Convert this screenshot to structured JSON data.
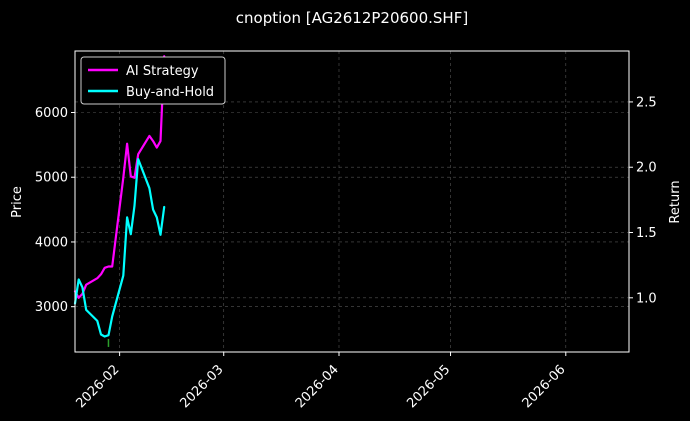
{
  "chart_data": {
    "type": "line",
    "title": "cnoption [AG2612P20600.SHF]",
    "ylabel_left": "Price",
    "ylabel_right": "Return",
    "x_range": [
      "2026-01-20",
      "2026-06-18"
    ],
    "x_ticks": [
      "2026-02",
      "2026-03",
      "2026-04",
      "2026-05",
      "2026-06"
    ],
    "y_left_range": [
      2300,
      6950
    ],
    "y_left_ticks": [
      3000,
      4000,
      5000,
      6000
    ],
    "y_right_range": [
      0.585,
      2.89
    ],
    "y_right_ticks": [
      1.0,
      1.5,
      2.0,
      2.5
    ],
    "grid": true,
    "legend_position": "top-left",
    "colors": {
      "background": "#000000",
      "axes": "#ffffff",
      "grid": "#555555",
      "marker": "#2ca02c"
    },
    "series": [
      {
        "name": "AI Strategy",
        "axis": "right",
        "color": "#ff00ff",
        "x": [
          "2026-01-20",
          "2026-01-21",
          "2026-01-22",
          "2026-01-23",
          "2026-01-26",
          "2026-01-27",
          "2026-01-28",
          "2026-01-29",
          "2026-01-30",
          "2026-02-02",
          "2026-02-03",
          "2026-02-04",
          "2026-02-05",
          "2026-02-06",
          "2026-02-09",
          "2026-02-10",
          "2026-02-11",
          "2026-02-12",
          "2026-02-13"
        ],
        "values": [
          1.05,
          1.0,
          1.03,
          1.1,
          1.15,
          1.18,
          1.23,
          1.24,
          1.24,
          1.92,
          2.18,
          1.93,
          1.92,
          2.1,
          2.24,
          2.2,
          2.15,
          2.2,
          2.85
        ]
      },
      {
        "name": "Buy-and-Hold",
        "axis": "left",
        "color": "#00ffff",
        "x": [
          "2026-01-20",
          "2026-01-21",
          "2026-01-22",
          "2026-01-23",
          "2026-01-26",
          "2026-01-27",
          "2026-01-28",
          "2026-01-29",
          "2026-01-30",
          "2026-02-02",
          "2026-02-03",
          "2026-02-04",
          "2026-02-05",
          "2026-02-06",
          "2026-02-09",
          "2026-02-10",
          "2026-02-11",
          "2026-02-12",
          "2026-02-13"
        ],
        "values": [
          3050,
          3420,
          3300,
          2950,
          2780,
          2570,
          2540,
          2560,
          2850,
          3480,
          4380,
          4120,
          4560,
          5280,
          4830,
          4500,
          4380,
          4110,
          4540
        ]
      }
    ],
    "annotations": [
      {
        "type": "tick-marker",
        "x": "2026-01-29",
        "y": 2440,
        "axis": "left"
      }
    ]
  }
}
